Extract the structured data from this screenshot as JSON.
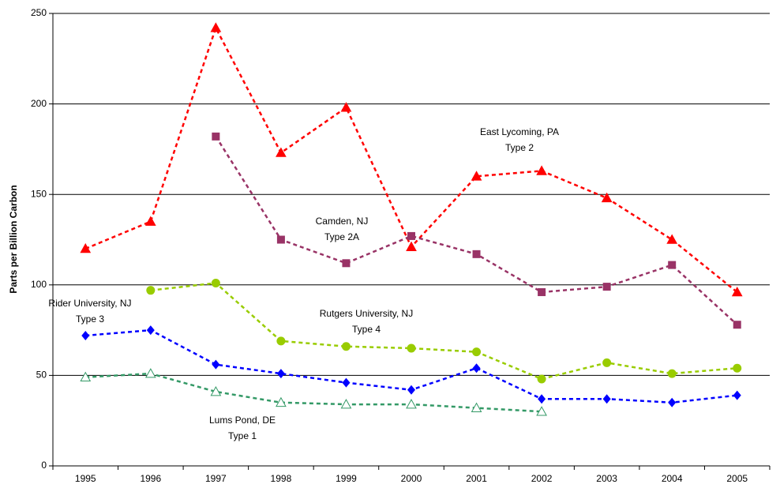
{
  "chart_data": {
    "type": "line",
    "y_label": "Parts per Billion Carbon",
    "categories": [
      "1995",
      "1996",
      "1997",
      "1998",
      "1999",
      "2000",
      "2001",
      "2002",
      "2003",
      "2004",
      "2005"
    ],
    "ylim": [
      0,
      250
    ],
    "yticks": [
      0,
      50,
      100,
      150,
      200,
      250
    ],
    "grid": true,
    "series": [
      {
        "name": "East Lycoming, PA",
        "subtitle": "Type 2",
        "color": "#ff0000",
        "marker": "triangle",
        "values": [
          120,
          135,
          242,
          173,
          198,
          121,
          160,
          163,
          148,
          125,
          96
        ]
      },
      {
        "name": "Camden, NJ",
        "subtitle": "Type 2A",
        "color": "#993366",
        "marker": "square",
        "values": [
          null,
          null,
          182,
          125,
          112,
          127,
          117,
          96,
          99,
          111,
          78
        ]
      },
      {
        "name": "Rutgers University, NJ",
        "subtitle": "Type 4",
        "color": "#99cc00",
        "marker": "circle",
        "values": [
          null,
          97,
          101,
          69,
          66,
          65,
          63,
          48,
          57,
          51,
          54
        ]
      },
      {
        "name": "Rider University, NJ",
        "subtitle": "Type 3",
        "color": "#0000ff",
        "marker": "diamond",
        "values": [
          72,
          75,
          56,
          51,
          46,
          42,
          54,
          37,
          37,
          35,
          39
        ]
      },
      {
        "name": "Lums Pond, DE",
        "subtitle": "Type 1",
        "color": "#339966",
        "marker": "open-triangle",
        "values": [
          49,
          51,
          41,
          35,
          34,
          34,
          32,
          30,
          null,
          null,
          null
        ]
      }
    ]
  }
}
